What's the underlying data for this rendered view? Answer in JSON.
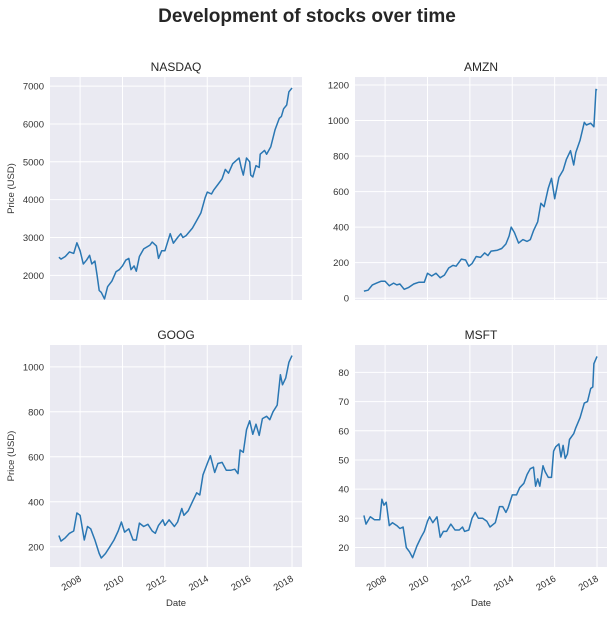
{
  "colors": {
    "background": "#eaeaf2",
    "grid": "#ffffff",
    "line": "#2a77b3"
  },
  "chart_data": {
    "type": "line",
    "title": "Development of stocks over time",
    "panels": [
      {
        "title": "NASDAQ",
        "xlabel": "",
        "ylabel": "Price (USD)",
        "xlim": [
          2006.58,
          2018.47
        ],
        "ylim": [
          1350,
          7240
        ],
        "yticks": [
          2000,
          3000,
          4000,
          5000,
          6000,
          7000
        ],
        "xticks": [
          2008,
          2010,
          2012,
          2014,
          2016,
          2018
        ],
        "show_xticklabels": false,
        "x": [
          2007.0,
          2007.1,
          2007.3,
          2007.5,
          2007.7,
          2007.85,
          2008.0,
          2008.15,
          2008.3,
          2008.45,
          2008.55,
          2008.7,
          2008.8,
          2008.9,
          2009.0,
          2009.15,
          2009.3,
          2009.5,
          2009.7,
          2009.85,
          2010.0,
          2010.15,
          2010.3,
          2010.4,
          2010.55,
          2010.65,
          2010.8,
          2011.0,
          2011.3,
          2011.4,
          2011.6,
          2011.7,
          2011.85,
          2012.0,
          2012.25,
          2012.4,
          2012.6,
          2012.75,
          2012.85,
          2013.0,
          2013.3,
          2013.5,
          2013.7,
          2013.9,
          2014.0,
          2014.2,
          2014.3,
          2014.5,
          2014.7,
          2014.85,
          2015.0,
          2015.2,
          2015.4,
          2015.5,
          2015.6,
          2015.7,
          2015.85,
          2016.0,
          2016.05,
          2016.15,
          2016.3,
          2016.45,
          2016.5,
          2016.7,
          2016.8,
          2017.0,
          2017.2,
          2017.4,
          2017.5,
          2017.6,
          2017.75,
          2017.85,
          2018.0
        ],
        "y": [
          2480,
          2430,
          2500,
          2620,
          2580,
          2860,
          2650,
          2300,
          2400,
          2530,
          2300,
          2380,
          2000,
          1600,
          1550,
          1380,
          1700,
          1850,
          2100,
          2150,
          2250,
          2400,
          2450,
          2150,
          2250,
          2110,
          2500,
          2700,
          2800,
          2880,
          2780,
          2450,
          2650,
          2650,
          3100,
          2850,
          3000,
          3100,
          3000,
          3050,
          3250,
          3450,
          3650,
          4050,
          4200,
          4150,
          4250,
          4400,
          4550,
          4800,
          4700,
          4950,
          5050,
          5100,
          4850,
          4650,
          5100,
          5000,
          4650,
          4600,
          4900,
          4850,
          5200,
          5300,
          5200,
          5400,
          5850,
          6150,
          6200,
          6400,
          6500,
          6850,
          6950
        ]
      },
      {
        "title": "AMZN",
        "xlabel": "",
        "ylabel": "",
        "xlim": [
          2006.58,
          2018.47
        ],
        "ylim": [
          -10,
          1245
        ],
        "yticks": [
          0,
          200,
          400,
          600,
          800,
          1000,
          1200
        ],
        "xticks": [
          2008,
          2010,
          2012,
          2014,
          2016,
          2018
        ],
        "show_xticklabels": false,
        "x": [
          2007.0,
          2007.2,
          2007.4,
          2007.6,
          2007.8,
          2008.0,
          2008.2,
          2008.4,
          2008.55,
          2008.7,
          2008.9,
          2009.1,
          2009.35,
          2009.6,
          2009.85,
          2010.0,
          2010.2,
          2010.4,
          2010.6,
          2010.8,
          2011.0,
          2011.2,
          2011.35,
          2011.6,
          2011.8,
          2011.95,
          2012.1,
          2012.3,
          2012.5,
          2012.7,
          2012.85,
          2013.0,
          2013.3,
          2013.5,
          2013.7,
          2013.85,
          2013.95,
          2014.1,
          2014.3,
          2014.5,
          2014.7,
          2014.85,
          2015.0,
          2015.2,
          2015.35,
          2015.5,
          2015.7,
          2015.85,
          2016.0,
          2016.2,
          2016.4,
          2016.55,
          2016.75,
          2016.9,
          2017.0,
          2017.2,
          2017.4,
          2017.5,
          2017.7,
          2017.85,
          2017.95,
          2018.0
        ],
        "y": [
          40,
          45,
          75,
          85,
          95,
          95,
          70,
          85,
          75,
          80,
          50,
          60,
          80,
          90,
          90,
          140,
          125,
          140,
          115,
          130,
          170,
          185,
          180,
          220,
          215,
          180,
          195,
          235,
          230,
          255,
          240,
          265,
          270,
          280,
          305,
          350,
          400,
          370,
          310,
          330,
          320,
          330,
          380,
          430,
          535,
          515,
          620,
          675,
          560,
          680,
          720,
          780,
          830,
          750,
          820,
          890,
          990,
          975,
          985,
          965,
          1175,
          1170
        ]
      },
      {
        "title": "GOOG",
        "xlabel": "Date",
        "ylabel": "Price (USD)",
        "xlim": [
          2006.58,
          2018.47
        ],
        "ylim": [
          110,
          1097
        ],
        "yticks": [
          200,
          400,
          600,
          800,
          1000
        ],
        "xticks": [
          2008,
          2010,
          2012,
          2014,
          2016,
          2018
        ],
        "show_xticklabels": true,
        "x": [
          2007.0,
          2007.1,
          2007.3,
          2007.5,
          2007.7,
          2007.85,
          2008.0,
          2008.2,
          2008.35,
          2008.5,
          2008.7,
          2008.9,
          2009.0,
          2009.2,
          2009.4,
          2009.6,
          2009.8,
          2009.95,
          2010.1,
          2010.3,
          2010.5,
          2010.65,
          2010.8,
          2011.0,
          2011.2,
          2011.4,
          2011.55,
          2011.7,
          2011.9,
          2012.0,
          2012.2,
          2012.45,
          2012.6,
          2012.8,
          2012.9,
          2013.1,
          2013.3,
          2013.5,
          2013.65,
          2013.8,
          2014.0,
          2014.15,
          2014.35,
          2014.5,
          2014.7,
          2014.9,
          2015.1,
          2015.3,
          2015.45,
          2015.55,
          2015.7,
          2015.85,
          2016.0,
          2016.15,
          2016.3,
          2016.45,
          2016.6,
          2016.8,
          2016.95,
          2017.1,
          2017.3,
          2017.45,
          2017.55,
          2017.7,
          2017.85,
          2018.0
        ],
        "y": [
          250,
          225,
          240,
          260,
          270,
          350,
          340,
          230,
          290,
          280,
          230,
          170,
          150,
          170,
          200,
          230,
          270,
          310,
          265,
          280,
          230,
          230,
          305,
          290,
          300,
          270,
          260,
          295,
          320,
          295,
          320,
          290,
          310,
          370,
          340,
          360,
          400,
          440,
          430,
          520,
          570,
          605,
          530,
          570,
          575,
          540,
          540,
          545,
          525,
          630,
          620,
          720,
          760,
          700,
          745,
          695,
          770,
          780,
          765,
          800,
          830,
          965,
          920,
          950,
          1020,
          1050
        ]
      },
      {
        "title": "MSFT",
        "xlabel": "Date",
        "ylabel": "",
        "xlim": [
          2006.58,
          2018.47
        ],
        "ylim": [
          13.3,
          89.4
        ],
        "yticks": [
          20,
          30,
          40,
          50,
          60,
          70,
          80
        ],
        "xticks": [
          2008,
          2010,
          2012,
          2014,
          2016,
          2018
        ],
        "show_xticklabels": true,
        "x": [
          2007.0,
          2007.1,
          2007.3,
          2007.5,
          2007.75,
          2007.85,
          2007.95,
          2008.05,
          2008.2,
          2008.35,
          2008.55,
          2008.7,
          2008.85,
          2009.0,
          2009.15,
          2009.3,
          2009.5,
          2009.7,
          2009.85,
          2010.0,
          2010.1,
          2010.25,
          2010.45,
          2010.6,
          2010.75,
          2010.9,
          2011.1,
          2011.3,
          2011.5,
          2011.65,
          2011.75,
          2011.95,
          2012.1,
          2012.25,
          2012.4,
          2012.6,
          2012.8,
          2012.95,
          2013.2,
          2013.4,
          2013.55,
          2013.7,
          2013.8,
          2014.0,
          2014.2,
          2014.35,
          2014.55,
          2014.7,
          2014.85,
          2015.0,
          2015.1,
          2015.2,
          2015.3,
          2015.45,
          2015.55,
          2015.7,
          2015.85,
          2015.95,
          2016.05,
          2016.2,
          2016.3,
          2016.4,
          2016.5,
          2016.6,
          2016.7,
          2016.9,
          2017.0,
          2017.2,
          2017.4,
          2017.55,
          2017.7,
          2017.8,
          2017.85,
          2018.0
        ],
        "y": [
          31,
          28,
          30.5,
          29.5,
          29.5,
          36.5,
          34.5,
          35.5,
          27.5,
          28.5,
          27.5,
          26.5,
          27,
          20,
          18.5,
          16.5,
          20.5,
          23.5,
          25.5,
          29,
          30.5,
          28.5,
          30.5,
          23.5,
          25.5,
          25.5,
          28,
          26,
          26,
          27,
          25.5,
          26,
          30,
          32,
          30,
          30,
          29,
          27,
          28.5,
          34,
          34,
          32,
          33.5,
          38,
          38,
          40.5,
          42,
          45,
          47,
          47.5,
          41,
          43.5,
          41,
          48,
          46,
          44,
          44,
          53,
          54.5,
          55.5,
          51,
          55,
          50.5,
          52,
          57,
          59,
          61,
          64.5,
          69.5,
          70,
          74.5,
          75,
          83,
          85.5
        ]
      }
    ]
  }
}
